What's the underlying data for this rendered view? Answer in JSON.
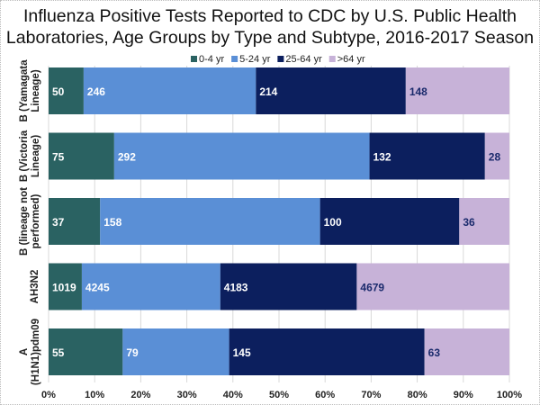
{
  "chart_data": {
    "type": "bar",
    "orientation": "horizontal",
    "stacked": "percent",
    "title_lines": [
      "Influenza Positive Tests Reported to CDC by U.S. Public Health",
      "Laboratories, Age Groups by Type and Subtype, 2016-2017 Season"
    ],
    "categories": [
      [
        "B (Yamagata",
        "Lineage)"
      ],
      [
        "B (Victoria",
        "Lineage)"
      ],
      [
        "B (lineage not",
        "performed)"
      ],
      [
        "AH3N2"
      ],
      [
        "A",
        "(H1N1)pdm09"
      ]
    ],
    "series": [
      {
        "name": "0-4 yr",
        "color": "#2a6262",
        "label_color": "#ffffff",
        "values": [
          50,
          75,
          37,
          1019,
          55
        ]
      },
      {
        "name": "5-24 yr",
        "color": "#5a8fd6",
        "label_color": "#ffffff",
        "values": [
          246,
          292,
          158,
          4245,
          79
        ]
      },
      {
        "name": "25-64 yr",
        "color": "#0c1f5e",
        "label_color": "#ffffff",
        "values": [
          214,
          132,
          100,
          4183,
          145
        ]
      },
      {
        "name": ">64 yr",
        "color": "#c7b2d8",
        "label_color": "#1a2a6c",
        "values": [
          148,
          28,
          36,
          4679,
          63
        ]
      }
    ],
    "xlim": [
      0,
      100
    ],
    "xticks": [
      "0%",
      "10%",
      "20%",
      "30%",
      "40%",
      "50%",
      "60%",
      "70%",
      "80%",
      "90%",
      "100%"
    ],
    "grid": "vertical",
    "legend_placement": "top"
  }
}
